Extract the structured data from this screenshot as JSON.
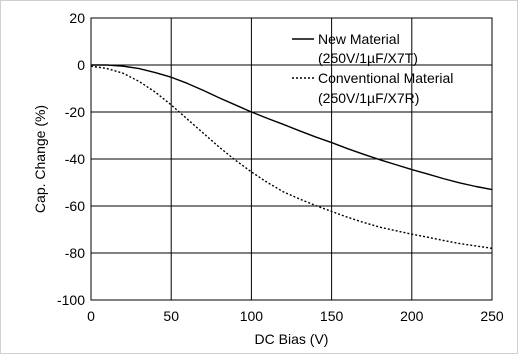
{
  "chart_data": {
    "type": "line",
    "title": "",
    "xlabel": "DC Bias (V)",
    "ylabel": "Cap. Change (%)",
    "xlim": [
      0,
      250
    ],
    "ylim": [
      -100,
      20
    ],
    "xticks": [
      0,
      50,
      100,
      150,
      200,
      250
    ],
    "yticks": [
      20,
      0,
      -20,
      -40,
      -60,
      -80,
      -100
    ],
    "xtick_labels": [
      "0",
      "50",
      "100",
      "150",
      "200",
      "250"
    ],
    "ytick_labels": [
      "20",
      "0",
      "-20",
      "-40",
      "-60",
      "-80",
      "-100"
    ],
    "grid": true,
    "legend_position": "top-right",
    "series": [
      {
        "name": "New Material (250V/1µF/X7T)",
        "legend_lines": [
          "New Material",
          "(250V/1µF/X7T)"
        ],
        "style": "solid",
        "color": "#000000",
        "x": [
          0,
          10,
          20,
          30,
          40,
          50,
          60,
          70,
          80,
          90,
          100,
          110,
          120,
          130,
          140,
          150,
          160,
          170,
          180,
          190,
          200,
          210,
          220,
          230,
          240,
          250
        ],
        "y": [
          0,
          0,
          -0.5,
          -1.5,
          -3.2,
          -5.2,
          -7.8,
          -10.8,
          -14,
          -17,
          -20,
          -22.7,
          -25.3,
          -28,
          -30.6,
          -33,
          -35.6,
          -38,
          -40.3,
          -42.4,
          -44.5,
          -46.4,
          -48.4,
          -50.2,
          -51.7,
          -53
        ]
      },
      {
        "name": "Conventional Material (250V/1µF/X7R)",
        "legend_lines": [
          "Conventional Material",
          "(250V/1µF/X7R)"
        ],
        "style": "dotted",
        "color": "#000000",
        "x": [
          0,
          10,
          20,
          30,
          40,
          50,
          60,
          70,
          80,
          90,
          100,
          110,
          120,
          130,
          140,
          150,
          160,
          170,
          180,
          190,
          200,
          210,
          220,
          230,
          240,
          250
        ],
        "y": [
          -0.5,
          -1.5,
          -3.5,
          -7,
          -11.5,
          -17,
          -23,
          -29,
          -35,
          -40.5,
          -45.5,
          -50,
          -54,
          -57,
          -59.8,
          -62.3,
          -64.8,
          -67,
          -69,
          -70.5,
          -72,
          -73.3,
          -74.7,
          -76,
          -77,
          -78
        ]
      }
    ]
  }
}
